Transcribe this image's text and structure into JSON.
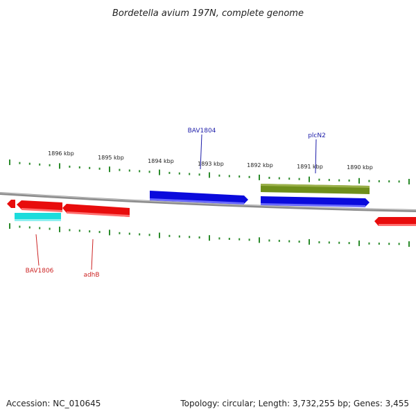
{
  "title": "Bordetella avium 197N, complete genome",
  "footer": {
    "accession": "Accession: NC_010645",
    "topology": "Topology: circular; Length: 3,732,255 bp; Genes: 3,455"
  },
  "ruler_labels": [
    "1896 kbp",
    "1895 kbp",
    "1894 kbp",
    "1893 kbp",
    "1892 kbp",
    "1891 kbp",
    "1890 kbp"
  ],
  "gene_labels": [
    {
      "text": "BAV1804",
      "color": "#1a1aa8"
    },
    {
      "text": "plcN2",
      "color": "#1a1aa8"
    },
    {
      "text": "BAV1806",
      "color": "#cc2222"
    },
    {
      "text": "adhB",
      "color": "#cc2222"
    }
  ],
  "colors": {
    "backbone": "#8c8c8c",
    "tick": "#2a8a2a",
    "forward_gene": "#0a0adc",
    "reverse_gene": "#e80c0c",
    "rna_gene": "#1cdcdc",
    "olive_gene": "#6f8f1c"
  }
}
